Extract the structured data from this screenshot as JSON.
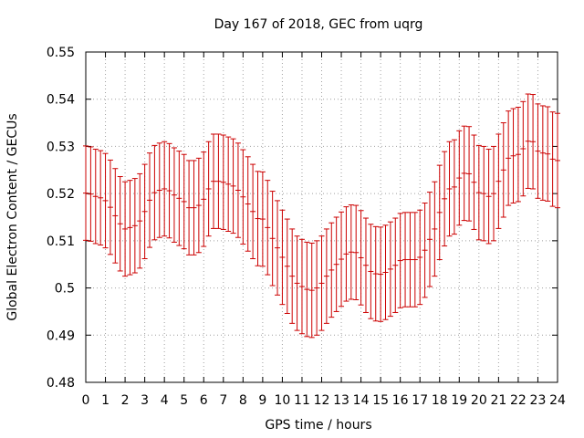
{
  "chart_data": {
    "type": "errorbar",
    "title": "Day 167 of 2018, GEC from uqrg",
    "xlabel": "GPS time / hours",
    "ylabel": "Global Electron Content / GECUs",
    "xlim": [
      0,
      24
    ],
    "ylim": [
      0.48,
      0.55
    ],
    "grid": true,
    "xticks": [
      "0",
      "1",
      "2",
      "3",
      "4",
      "5",
      "6",
      "7",
      "8",
      "9",
      "10",
      "11",
      "12",
      "13",
      "14",
      "15",
      "16",
      "17",
      "18",
      "19",
      "20",
      "21",
      "22",
      "23",
      "24"
    ],
    "yticks": [
      "0.48",
      "0.49",
      "0.5",
      "0.51",
      "0.52",
      "0.53",
      "0.54",
      "0.55"
    ],
    "error": 0.01,
    "color": "#cc0000",
    "x": [
      0,
      0.25,
      0.5,
      0.75,
      1,
      1.25,
      1.5,
      1.75,
      2,
      2.25,
      2.5,
      2.75,
      3,
      3.25,
      3.5,
      3.75,
      4,
      4.25,
      4.5,
      4.75,
      5,
      5.25,
      5.5,
      5.75,
      6,
      6.25,
      6.5,
      6.75,
      7,
      7.25,
      7.5,
      7.75,
      8,
      8.25,
      8.5,
      8.75,
      9,
      9.25,
      9.5,
      9.75,
      10,
      10.25,
      10.5,
      10.75,
      11,
      11.25,
      11.5,
      11.75,
      12,
      12.25,
      12.5,
      12.75,
      13,
      13.25,
      13.5,
      13.75,
      14,
      14.25,
      14.5,
      14.75,
      15,
      15.25,
      15.5,
      15.75,
      16,
      16.25,
      16.5,
      16.75,
      17,
      17.25,
      17.5,
      17.75,
      18,
      18.25,
      18.5,
      18.75,
      19,
      19.25,
      19.5,
      19.75,
      20,
      20.25,
      20.5,
      20.75,
      21,
      21.25,
      21.5,
      21.75,
      22,
      22.25,
      22.5,
      22.75,
      23,
      23.25,
      23.5,
      23.75,
      24
    ],
    "y": [
      0.5201,
      0.5199,
      0.5194,
      0.5191,
      0.5185,
      0.5171,
      0.5153,
      0.5136,
      0.5125,
      0.5128,
      0.5132,
      0.5142,
      0.5162,
      0.5186,
      0.5202,
      0.5207,
      0.521,
      0.5206,
      0.5197,
      0.519,
      0.5183,
      0.517,
      0.517,
      0.5175,
      0.5188,
      0.521,
      0.5226,
      0.5226,
      0.5224,
      0.522,
      0.5216,
      0.5207,
      0.5193,
      0.5178,
      0.5162,
      0.5147,
      0.5146,
      0.5128,
      0.5105,
      0.5085,
      0.5065,
      0.5046,
      0.5025,
      0.501,
      0.5003,
      0.4997,
      0.4995,
      0.5,
      0.501,
      0.5025,
      0.5038,
      0.505,
      0.5061,
      0.5072,
      0.5076,
      0.5075,
      0.5064,
      0.5048,
      0.5035,
      0.503,
      0.5029,
      0.5033,
      0.504,
      0.5048,
      0.5058,
      0.506,
      0.506,
      0.506,
      0.5065,
      0.508,
      0.5103,
      0.5125,
      0.516,
      0.5189,
      0.521,
      0.5214,
      0.5233,
      0.5243,
      0.5242,
      0.5224,
      0.5202,
      0.52,
      0.5194,
      0.52,
      0.5226,
      0.525,
      0.5275,
      0.528,
      0.5283,
      0.5295,
      0.5311,
      0.531,
      0.529,
      0.5286,
      0.5284,
      0.5273,
      0.527
    ]
  }
}
